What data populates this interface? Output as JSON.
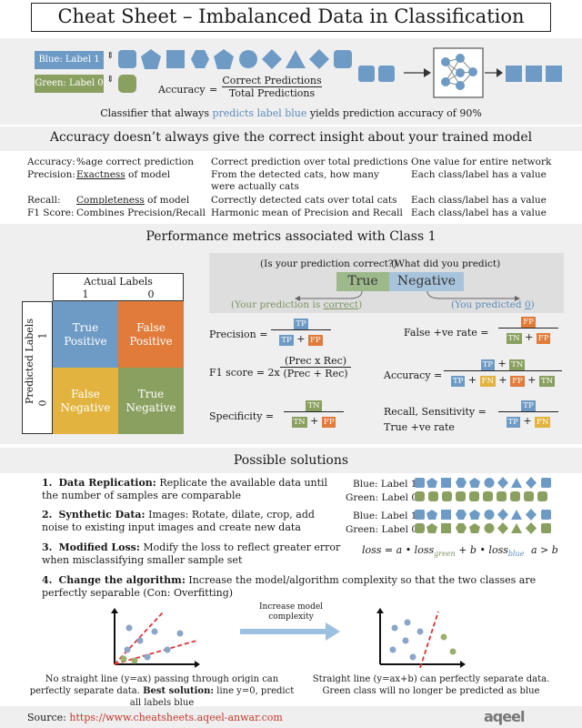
{
  "title": "Cheat Sheet – Imbalanced Data in Classification",
  "intro": {
    "blue_label": "Blue: Label 1",
    "green_label": "Green: Label 0",
    "accuracy_word": "Accuracy",
    "accuracy_num": "Correct Predictions",
    "accuracy_den": "Total Predictions",
    "caption_pre": "Classifier that always",
    "caption_hl": "predicts label blue",
    "caption_post": "yields prediction accuracy of 90%",
    "colors": {
      "blue": "#6e9bc5",
      "green": "#8aa060"
    }
  },
  "metrics_section": {
    "heading": "Accuracy doesn’t always give the correct insight about your trained model",
    "rows": [
      {
        "name": "Accuracy:",
        "def": "%age correct prediction",
        "desc": "Correct prediction over total predictions",
        "scope": "One value for entire network"
      },
      {
        "name": "Precision:",
        "def_u": "Exactness",
        "def": " of model",
        "desc": "From the detected cats, how many were actually cats",
        "scope": "Each class/label has a value"
      },
      {
        "name": "Recall:",
        "def_u": "Completeness",
        "def": " of model",
        "desc": "Correctly detected cats over total cats",
        "scope": "Each class/label has a value"
      },
      {
        "name": "F1 Score:",
        "def": "Combines Precision/Recall",
        "desc": "Harmonic mean of Precision and Recall",
        "scope": "Each class/label has a value"
      }
    ]
  },
  "perf_section": {
    "heading": "Performance metrics associated with Class 1",
    "actual_labels": "Actual Labels",
    "predicted_labels": "Predicted Labels",
    "one": "1",
    "zero": "0",
    "cells": {
      "tp": "True Positive",
      "fp": "False Positive",
      "fn": "False Negative",
      "tn": "True Negative"
    },
    "question_correct": "(Is your prediction correct?)",
    "question_predict": "(What did you predict)",
    "true_word": "True",
    "negative_word": "Negative",
    "your_pred_pre": "(Your prediction is ",
    "your_pred_u": "correct",
    "your_pred_post": ")",
    "you_pred_pre": "(You predicted ",
    "you_pred_u": "0",
    "you_pred_post": ")",
    "precision": "Precision =",
    "f1": "F1 score = 2x",
    "f1_num": "(Prec x Rec)",
    "f1_den": "(Prec + Rec)",
    "specificity": "Specificity =",
    "fpr": "False +ve rate =",
    "accuracy": "Accuracy =",
    "recall": "Recall, Sensitivity =",
    "tpr": "True +ve rate",
    "tp": "TP",
    "fp": "FP",
    "fn": "FN",
    "tn": "TN",
    "plus": "+"
  },
  "solutions": {
    "heading": "Possible solutions",
    "items": [
      {
        "num": "1.",
        "title": "Data Replication:",
        "text": "Replicate the available data until the number of samples are comparable"
      },
      {
        "num": "2.",
        "title": "Synthetic Data:",
        "text": "Images: Rotate, dilate, crop, add noise to existing input images and create new data"
      },
      {
        "num": "3.",
        "title": "Modified Loss:",
        "text": "Modify the loss to reflect greater error when misclassifying smaller sample set"
      },
      {
        "num": "4.",
        "title": "Change the algorithm:",
        "text": "Increase the model/algorithm complexity so that the two classes are perfectly separable (Con: Overfitting)"
      }
    ],
    "blue_label": "Blue: Label 1",
    "green_label": "Green: Label 0",
    "loss_formula": "loss = a • loss",
    "loss_green_sub": "green",
    "loss_mid": " + b • loss",
    "loss_blue_sub": "blue",
    "loss_cond": "a > b",
    "increase_label": "Increase model complexity",
    "left_caption_1": "No straight line (y=ax) passing through origin can perfectly separate data.",
    "left_caption_bold": "Best solution:",
    "left_caption_2": "line y=0, predict all labels blue",
    "right_caption": "Straight line (y=ax+b) can perfectly separate data. Green class will no longer be predicted as blue"
  },
  "footer": {
    "source_label": "Source:",
    "source_url": "https://www.cheatsheets.aqeel-anwar.com",
    "logo_text": "aqeel"
  }
}
